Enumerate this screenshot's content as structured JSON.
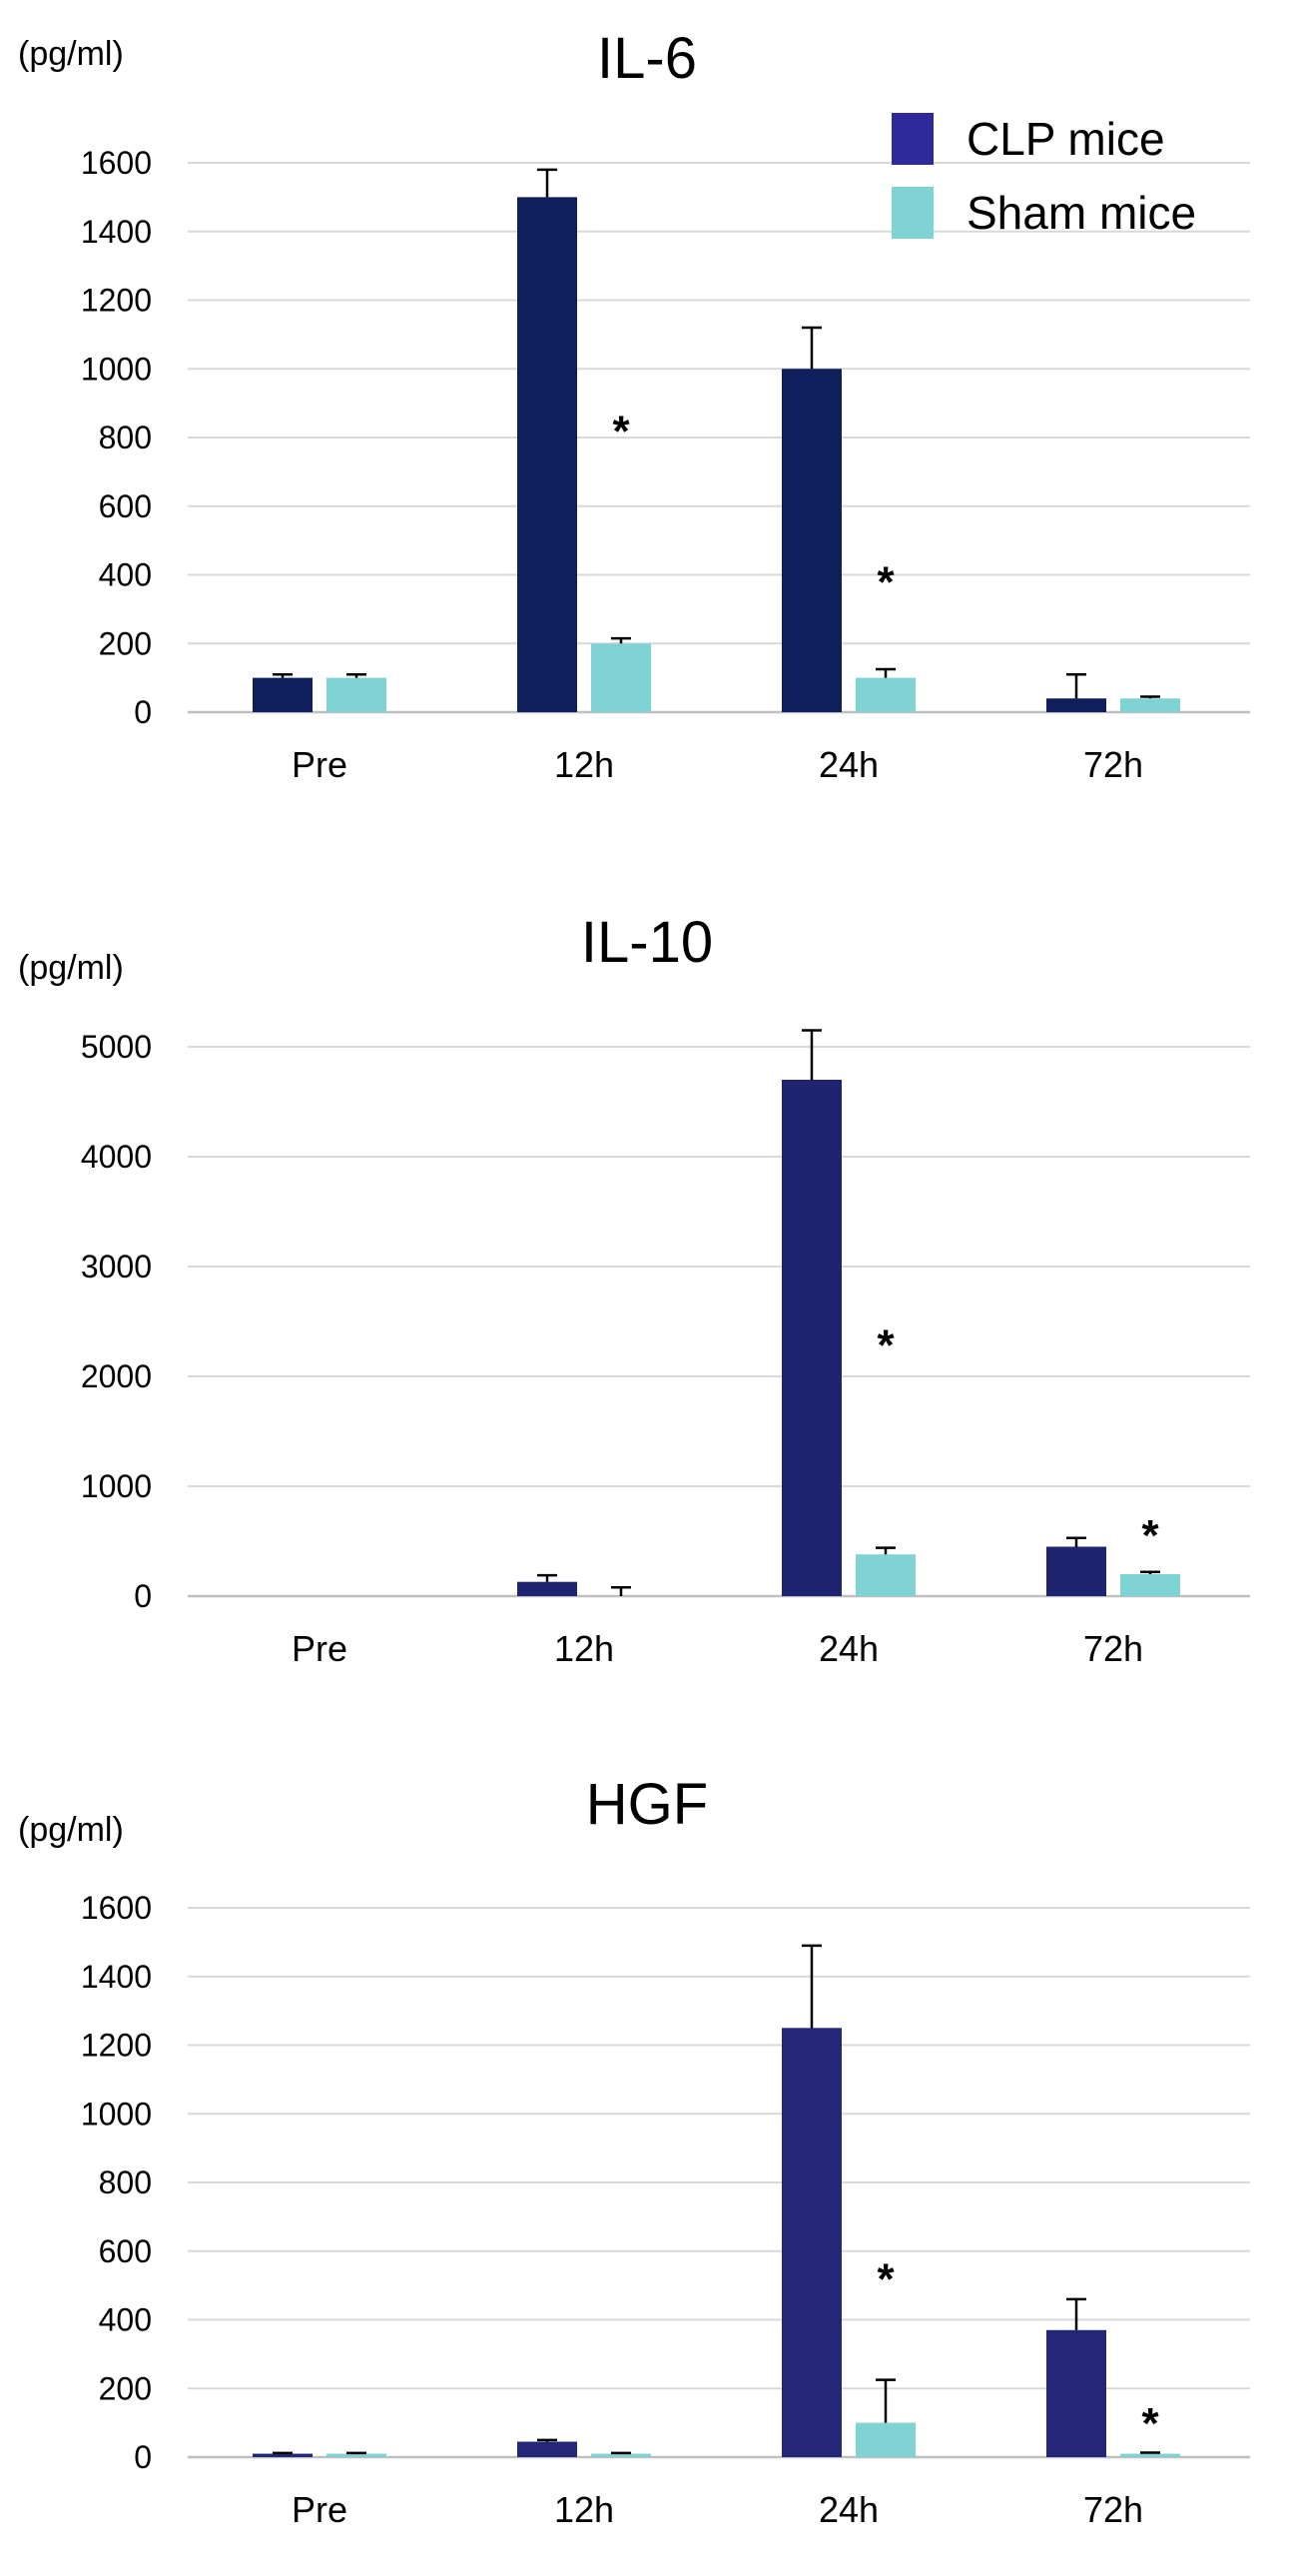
{
  "legend": {
    "series": [
      {
        "name": "CLP mice",
        "color": "#2e2a9c"
      },
      {
        "name": "Sham mice",
        "color": "#7fd3d4"
      }
    ]
  },
  "chart_data": [
    {
      "type": "bar",
      "title": "IL-6",
      "ylabel": "(pg/ml)",
      "categories": [
        "Pre",
        "12h",
        "24h",
        "72h"
      ],
      "ylim": [
        0,
        1600
      ],
      "yticks": [
        0,
        200,
        400,
        600,
        800,
        1000,
        1200,
        1400,
        1600
      ],
      "bar_colors": [
        "#0f1f5c",
        "#7fd3d4"
      ],
      "series": [
        {
          "name": "CLP mice",
          "values": [
            100,
            1500,
            1000,
            40
          ],
          "errors": [
            10,
            80,
            120,
            70
          ]
        },
        {
          "name": "Sham mice",
          "values": [
            100,
            200,
            100,
            40
          ],
          "errors": [
            10,
            15,
            25,
            5
          ]
        }
      ],
      "annotations": [
        {
          "text": "*",
          "category": "12h",
          "y": 840
        },
        {
          "text": "*",
          "category": "24h",
          "y": 400
        }
      ]
    },
    {
      "type": "bar",
      "title": "IL-10",
      "ylabel": "(pg/ml)",
      "categories": [
        "Pre",
        "12h",
        "24h",
        "72h"
      ],
      "ylim": [
        0,
        5000
      ],
      "yticks": [
        0,
        1000,
        2000,
        3000,
        4000,
        5000
      ],
      "bar_colors": [
        "#1e2470",
        "#7fd3d4"
      ],
      "series": [
        {
          "name": "CLP mice",
          "values": [
            0,
            130,
            4700,
            450
          ],
          "errors": [
            0,
            60,
            450,
            80
          ]
        },
        {
          "name": "Sham mice",
          "values": [
            0,
            0,
            380,
            200
          ],
          "errors": [
            0,
            80,
            60,
            20
          ]
        }
      ],
      "annotations": [
        {
          "text": "*",
          "category": "24h",
          "y": 2350
        },
        {
          "text": "*",
          "category": "72h",
          "y": 620
        }
      ]
    },
    {
      "type": "bar",
      "title": "HGF",
      "ylabel": "(pg/ml)",
      "categories": [
        "Pre",
        "12h",
        "24h",
        "72h"
      ],
      "ylim": [
        0,
        1600
      ],
      "yticks": [
        0,
        200,
        400,
        600,
        800,
        1000,
        1200,
        1400,
        1600
      ],
      "bar_colors": [
        "#242777",
        "#7fd3d4"
      ],
      "series": [
        {
          "name": "CLP mice",
          "values": [
            10,
            45,
            1250,
            370
          ],
          "errors": [
            2,
            5,
            240,
            90
          ]
        },
        {
          "name": "Sham mice",
          "values": [
            10,
            10,
            100,
            10
          ],
          "errors": [
            2,
            2,
            125,
            3
          ]
        }
      ],
      "annotations": [
        {
          "text": "*",
          "category": "24h",
          "y": 540
        },
        {
          "text": "*",
          "category": "72h",
          "y": 120
        }
      ]
    }
  ]
}
